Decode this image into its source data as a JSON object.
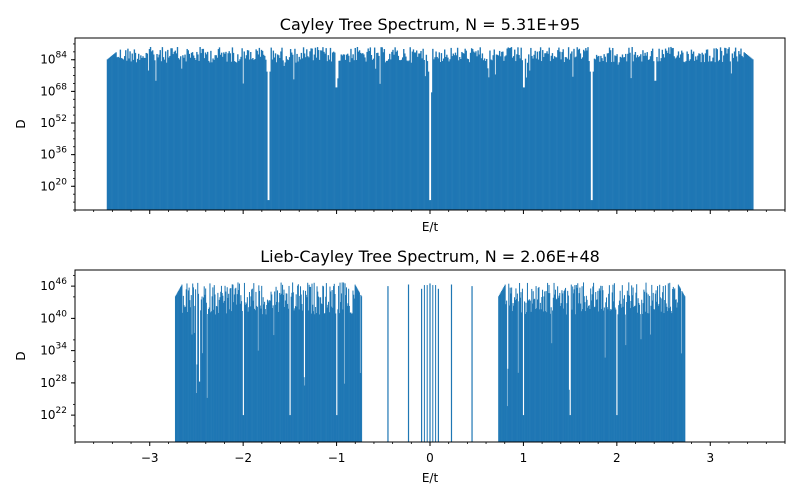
{
  "chart_data": [
    {
      "type": "bar",
      "title": "Cayley Tree Spectrum, N = 5.31E+95",
      "xlabel": "E/t",
      "ylabel": "D",
      "xlim": [
        -3.8,
        3.8
      ],
      "ylog10_lim": [
        8,
        95
      ],
      "ytick_exponents": [
        20,
        36,
        52,
        68,
        84
      ],
      "xticks_labeled": false,
      "color": "#1f77b4",
      "edge": 3.46,
      "bins": 600,
      "envelope_exponent": 90.5,
      "gap_positions": [
        -1.73,
        -1.0,
        0.0,
        1.0,
        1.73
      ],
      "gap_depths_exponent": [
        13,
        70,
        13,
        70,
        13
      ],
      "series": [
        {
          "x_range": [
            -3.46,
            3.46
          ],
          "peak_exponent": 90
        }
      ]
    },
    {
      "type": "bar",
      "title": "Lieb-Cayley Tree Spectrum, N = 2.06E+48",
      "xlabel": "E/t",
      "ylabel": "D",
      "xlim": [
        -3.8,
        3.8
      ],
      "ylog10_lim": [
        17,
        49
      ],
      "ytick_exponents": [
        22,
        28,
        34,
        40,
        46
      ],
      "xtick_values": [
        -3,
        -2,
        -1,
        0,
        1,
        2,
        3
      ],
      "xtick_labels": [
        "−3",
        "−2",
        "−1",
        "0",
        "1",
        "2",
        "3"
      ],
      "color": "#1f77b4",
      "bands": [
        [
          -2.73,
          -0.73
        ],
        [
          0.73,
          2.73
        ]
      ],
      "bins_per_band": 260,
      "envelope_exponent": 46.7,
      "center_spikes": [
        {
          "x": -0.45,
          "exponent": 46.0
        },
        {
          "x": -0.23,
          "exponent": 46.3
        },
        {
          "x": -0.09,
          "exponent": 45.5
        },
        {
          "x": 0.0,
          "exponent": 46.5
        },
        {
          "x": 0.09,
          "exponent": 45.5
        },
        {
          "x": 0.23,
          "exponent": 46.3
        },
        {
          "x": 0.45,
          "exponent": 46.0
        }
      ]
    }
  ]
}
